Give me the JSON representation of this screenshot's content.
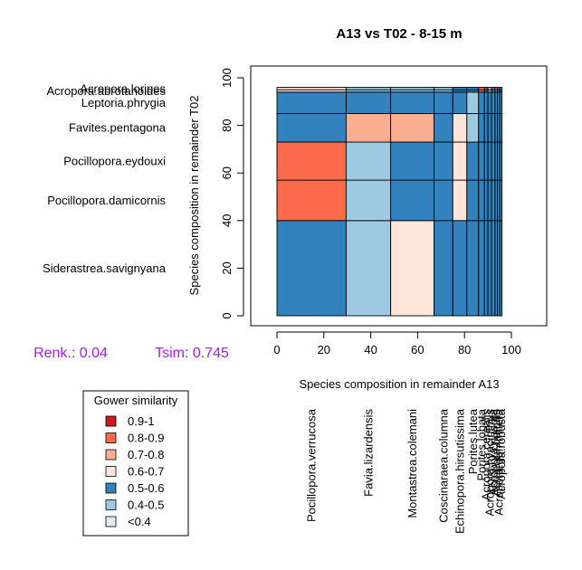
{
  "chart_data": {
    "type": "mosaic",
    "title": "A13 vs T02  - 8-15 m",
    "xlabel": "Species composition in remainder  A13",
    "ylabel": "Species composition in remainder  T02",
    "xlim": [
      0,
      100
    ],
    "ylim": [
      0,
      100
    ],
    "x_ticks": [
      "0",
      "20",
      "40",
      "60",
      "80",
      "100"
    ],
    "y_ticks": [
      "0",
      "20",
      "40",
      "60",
      "80",
      "100"
    ],
    "x_categories": [
      {
        "name": "Pocillopora.verrucosa",
        "start": 0,
        "end": 29.5
      },
      {
        "name": "Favia.lizardensis",
        "start": 29.5,
        "end": 48.5
      },
      {
        "name": "Montastrea.colemani",
        "start": 48.5,
        "end": 67
      },
      {
        "name": "Coscinaraea.columna",
        "start": 67,
        "end": 75
      },
      {
        "name": "Echinopora.hirsutissima",
        "start": 75,
        "end": 81
      },
      {
        "name": "Porites.lutea",
        "start": 81,
        "end": 86
      },
      {
        "name": "Porites.lobata",
        "start": 86,
        "end": 88.5
      },
      {
        "name": "Acropora.cerealis",
        "start": 88.5,
        "end": 90
      },
      {
        "name": "Acropora.hyacinthus",
        "start": 90,
        "end": 91.5
      },
      {
        "name": "Acropora.nasuta",
        "start": 91.5,
        "end": 93
      },
      {
        "name": "Acropora.humilis",
        "start": 93,
        "end": 94
      },
      {
        "name": "Acropora.gemmifera",
        "start": 94,
        "end": 95
      },
      {
        "name": "Acropora.robusta",
        "start": 95,
        "end": 96
      }
    ],
    "y_categories": [
      {
        "name": "Siderastrea.savignyana",
        "start": 0,
        "end": 40
      },
      {
        "name": "Pocillopora.damicornis",
        "start": 40,
        "end": 57
      },
      {
        "name": "Pocillopora.eydouxi",
        "start": 57,
        "end": 73
      },
      {
        "name": "Favites.pentagona",
        "start": 73,
        "end": 85
      },
      {
        "name": "Leptoria.phrygia",
        "start": 85,
        "end": 94
      },
      {
        "name": "Acropora.abrotanoides",
        "start": 94,
        "end": 95
      },
      {
        "name": "Acropora.loripes",
        "start": 95,
        "end": 96
      }
    ],
    "cell_classes": [
      [
        4,
        5,
        3,
        4,
        4,
        4,
        4,
        4,
        4,
        4,
        4,
        4,
        4
      ],
      [
        1,
        5,
        4,
        4,
        3,
        4,
        4,
        4,
        4,
        4,
        4,
        4,
        4
      ],
      [
        1,
        5,
        4,
        4,
        3,
        4,
        4,
        4,
        4,
        4,
        4,
        4,
        4
      ],
      [
        4,
        2,
        2,
        4,
        3,
        5,
        4,
        4,
        4,
        4,
        4,
        4,
        4
      ],
      [
        4,
        4,
        4,
        4,
        4,
        5,
        4,
        4,
        4,
        4,
        4,
        4,
        4
      ],
      [
        3,
        5,
        5,
        5,
        4,
        4,
        1,
        4,
        2,
        4,
        1,
        4,
        4
      ],
      [
        3,
        5,
        5,
        5,
        4,
        4,
        1,
        4,
        2,
        4,
        1,
        4,
        4
      ]
    ],
    "legend": {
      "title": "Gower similarity",
      "entries": [
        {
          "label": "0.9-1",
          "color": "#cb181d"
        },
        {
          "label": "0.8-0.9",
          "color": "#fb6a4a"
        },
        {
          "label": "0.7-0.8",
          "color": "#fcae91"
        },
        {
          "label": "0.6-0.7",
          "color": "#fee5d9"
        },
        {
          "label": "0.5-0.6",
          "color": "#3182bd"
        },
        {
          "label": "0.4-0.5",
          "color": "#9ecae1"
        },
        {
          "label": "<0.4",
          "color": "#deebf7"
        }
      ]
    },
    "annotations": [
      {
        "label": "Renk.: 0.04",
        "color": "#a020f0"
      },
      {
        "label": "Tsim: 0.745",
        "color": "#a020f0"
      }
    ]
  }
}
